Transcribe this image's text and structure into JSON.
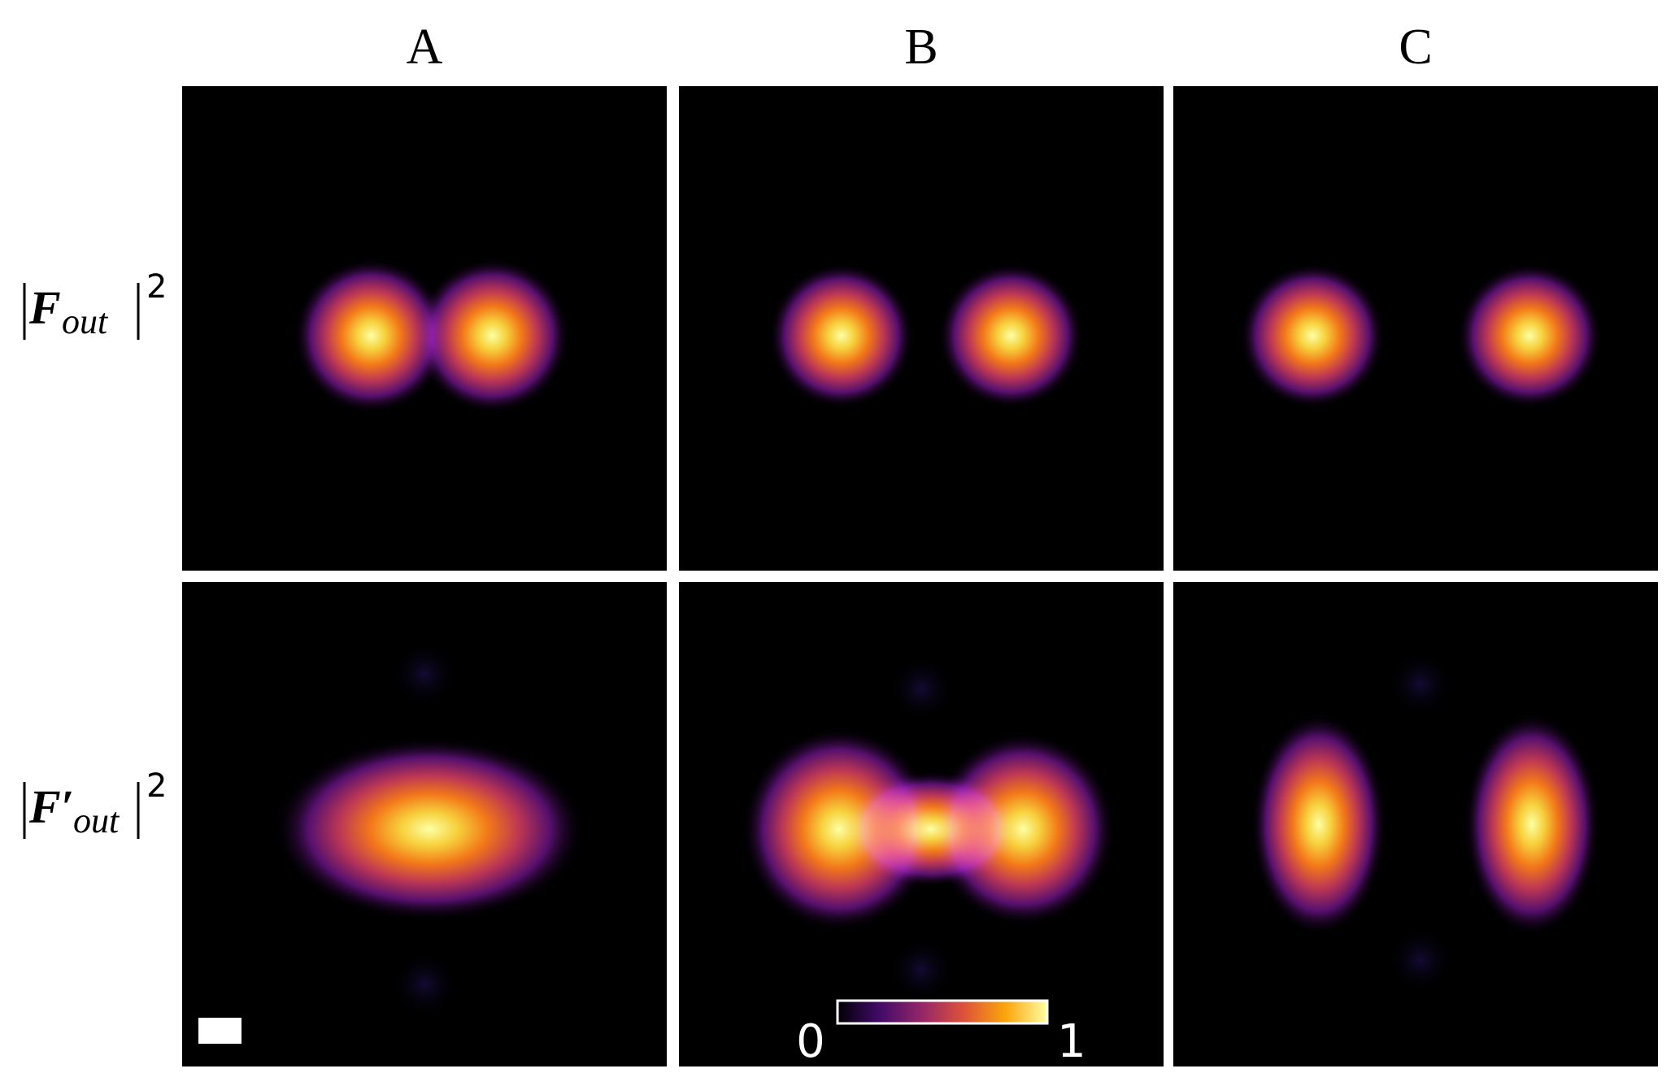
{
  "columns": [
    "A",
    "B",
    "C"
  ],
  "rows": [
    {
      "symbol": "F",
      "subscript": "out",
      "exponent": "2"
    },
    {
      "symbol": "F′",
      "subscript": "out",
      "exponent": "2"
    }
  ],
  "colorbar": {
    "ticks": [
      0,
      1
    ]
  }
}
